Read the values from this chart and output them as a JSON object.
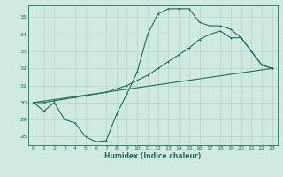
{
  "xlabel": "Humidex (Indice chaleur)",
  "ylabel": "",
  "bg_color": "#ceeae2",
  "grid_color": "#b8d8d0",
  "line_color": "#2a6b5a",
  "xlim": [
    -0.5,
    23.5
  ],
  "ylim": [
    27.5,
    35.7
  ],
  "xticks": [
    0,
    1,
    2,
    3,
    4,
    5,
    6,
    7,
    8,
    9,
    10,
    11,
    12,
    13,
    14,
    15,
    16,
    17,
    18,
    19,
    20,
    21,
    22,
    23
  ],
  "yticks": [
    28,
    29,
    30,
    31,
    32,
    33,
    34,
    35
  ],
  "line1_x": [
    0,
    1,
    2,
    3,
    4,
    5,
    6,
    7,
    8,
    9,
    10,
    11,
    12,
    13,
    14,
    15,
    16,
    17,
    18,
    19,
    20,
    21,
    22,
    23
  ],
  "line1_y": [
    30.0,
    29.5,
    30.0,
    29.0,
    28.8,
    28.0,
    27.7,
    27.75,
    29.3,
    30.5,
    31.8,
    34.0,
    35.2,
    35.5,
    35.5,
    35.5,
    34.7,
    34.5,
    34.5,
    34.3,
    33.8,
    33.0,
    32.2,
    32.0
  ],
  "line2_x": [
    0,
    1,
    2,
    3,
    4,
    5,
    6,
    7,
    8,
    9,
    10,
    11,
    12,
    13,
    14,
    15,
    16,
    17,
    18,
    19,
    20,
    21,
    22,
    23
  ],
  "line2_y": [
    30.0,
    30.0,
    30.1,
    30.2,
    30.3,
    30.4,
    30.5,
    30.6,
    30.8,
    31.0,
    31.3,
    31.6,
    32.0,
    32.4,
    32.8,
    33.2,
    33.7,
    34.0,
    34.2,
    33.8,
    33.8,
    33.0,
    32.2,
    32.0
  ],
  "line3_x": [
    0,
    23
  ],
  "line3_y": [
    30.0,
    32.0
  ]
}
